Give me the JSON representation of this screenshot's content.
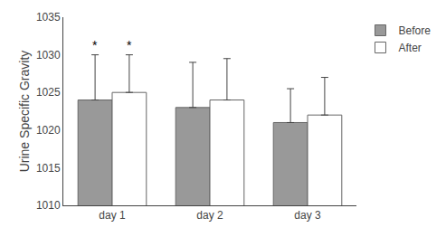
{
  "chart_data": {
    "type": "bar",
    "categories": [
      "day 1",
      "day 2",
      "day 3"
    ],
    "series": [
      {
        "name": "Before",
        "color": "#999999",
        "values": [
          1024.0,
          1023.0,
          1021.0
        ],
        "errors_up": [
          6.0,
          6.0,
          4.5
        ]
      },
      {
        "name": "After",
        "color": "#ffffff",
        "values": [
          1025.0,
          1024.0,
          1022.0
        ],
        "errors_up": [
          5.0,
          5.5,
          5.0
        ]
      }
    ],
    "ylabel": "Urine Specific Gravity",
    "ylim": [
      1010,
      1035
    ],
    "yticks": [
      1010,
      1015,
      1020,
      1025,
      1030,
      1035
    ],
    "annotations": [
      {
        "text": "*",
        "category": "day 1",
        "series": "Before"
      },
      {
        "text": "*",
        "category": "day 1",
        "series": "After"
      }
    ],
    "legend": "upper right",
    "grid": false
  }
}
